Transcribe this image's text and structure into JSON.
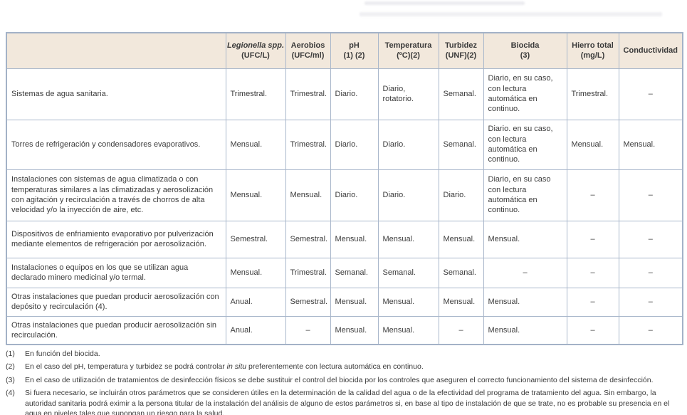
{
  "accent_colors": {
    "header_background": "#f2e8dc",
    "table_border": "#a9b7cb",
    "text": "#3c3c3c"
  },
  "table": {
    "columns": [
      {
        "main": "",
        "sub": "",
        "italic": false
      },
      {
        "main": "Legionella spp.",
        "sub": "(UFC/L)",
        "italic": true
      },
      {
        "main": "Aerobios",
        "sub": "(UFC/ml)",
        "italic": false
      },
      {
        "main": "pH",
        "sub": "(1) (2)",
        "italic": false
      },
      {
        "main": "Temperatura",
        "sub": "(ºC)(2)",
        "italic": false
      },
      {
        "main": "Turbidez",
        "sub": "(UNF)(2)",
        "italic": false
      },
      {
        "main": "Biocida",
        "sub": "(3)",
        "italic": false
      },
      {
        "main": "Hierro total",
        "sub": "(mg/L)",
        "italic": false
      },
      {
        "main": "Conductividad",
        "sub": "",
        "italic": false
      }
    ],
    "rows": [
      {
        "label": "Sistemas de agua sanitaria.",
        "values": [
          "Trimestral.",
          "Trimestral.",
          "Diario.",
          "Diario, rotatorio.",
          "Semanal.",
          "Diario, en su caso, con lectura automática en continuo.",
          "Trimestral.",
          "–"
        ]
      },
      {
        "label": "Torres de refrigeración y condensadores evaporativos.",
        "values": [
          "Mensual.",
          "Trimestral.",
          "Diario.",
          "Diario.",
          "Semanal.",
          "Diario. en su caso, con lectura automática en continuo.",
          "Mensual.",
          "Mensual."
        ]
      },
      {
        "label": "Instalaciones con sistemas de agua climatizada o con temperaturas similares a las climatizadas y aerosolización con agitación y recirculación a través de chorros de alta velocidad y/o la inyección de aire, etc.",
        "values": [
          "Mensual.",
          "Mensual.",
          "Diario.",
          "Diario.",
          "Diario.",
          "Diario, en su caso con lectura automática en continuo.",
          "–",
          "–"
        ]
      },
      {
        "label": "Dispositivos de enfriamiento evaporativo por pulverización mediante elementos de refrigeración por aerosolización.",
        "values": [
          "Semestral.",
          "Semestral.",
          "Mensual.",
          "Mensual.",
          "Mensual.",
          "Mensual.",
          "–",
          "–"
        ]
      },
      {
        "label": "Instalaciones o equipos en los que se utilizan agua declarado minero medicinal y/o termal.",
        "values": [
          "Mensual.",
          "Trimestral.",
          "Semanal.",
          "Semanal.",
          "Semanal.",
          "–",
          "–",
          "–"
        ]
      },
      {
        "label": "Otras instalaciones que puedan producir aerosolización con depósito y recirculación (4).",
        "values": [
          "Anual.",
          "Semestral.",
          "Mensual.",
          "Mensual.",
          "Mensual.",
          "Mensual.",
          "–",
          "–"
        ]
      },
      {
        "label": "Otras instalaciones que puedan producir aerosolización sin recirculación.",
        "values": [
          "Anual.",
          "–",
          "Mensual.",
          "Mensual.",
          "–",
          "Mensual.",
          "–",
          "–"
        ]
      }
    ]
  },
  "footnotes": [
    {
      "num": "(1)",
      "segments": [
        {
          "t": "En función del biocida."
        }
      ]
    },
    {
      "num": "(2)",
      "segments": [
        {
          "t": "En el caso del pH, temperatura y turbidez se podrá controlar "
        },
        {
          "t": "in situ",
          "i": true
        },
        {
          "t": " preferentemente con lectura automática en continuo."
        }
      ]
    },
    {
      "num": "(3)",
      "segments": [
        {
          "t": "En el caso de utilización de tratamientos de desinfección físicos se debe sustituir el control del biocida por los controles que aseguren el correcto funcionamiento del sistema de desinfección."
        }
      ]
    },
    {
      "num": "(4)",
      "segments": [
        {
          "t": "Si fuera necesario, se incluirán otros parámetros que se consideren útiles en la determinación de la calidad del agua o de la efectividad del programa de tratamiento del agua. Sin embargo, la autoridad sanitaria podrá eximir a la persona titular de la instalación del análisis de alguno de estos parámetros si, en base al tipo de instalación de que se trate, no es probable su presencia en el agua en niveles tales que supongan un riesgo para la salud."
        }
      ]
    }
  ]
}
